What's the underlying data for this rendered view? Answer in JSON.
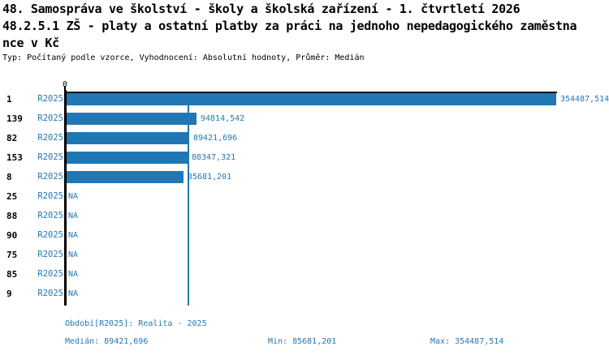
{
  "header": {
    "title_line1": "48. Samospráva ve školství - školy a školská zařízení - 1. čtvrtletí 2026",
    "title_line2": "48.2.5.1 ZŠ - platy a ostatní platby za práci na jednoho nepedagogického zaměstna",
    "title_line3": "nce v Kč",
    "meta_line": "Typ: Počítaný podle vzorce, Vyhodnocení: Absolutní hodnoty, Průměr: Medián"
  },
  "axis": {
    "zero_label": "0"
  },
  "colors": {
    "bar": "#2177b4",
    "blue_text": "#2478b4",
    "axis": "#000000"
  },
  "rows": [
    {
      "num": "1",
      "period": "R2025",
      "value": 354487.514,
      "display": "354487,514"
    },
    {
      "num": "139",
      "period": "R2025",
      "value": 94814.542,
      "display": "94814,542"
    },
    {
      "num": "82",
      "period": "R2025",
      "value": 89421.696,
      "display": "89421,696"
    },
    {
      "num": "153",
      "period": "R2025",
      "value": 88347.321,
      "display": "88347,321"
    },
    {
      "num": "8",
      "period": "R2025",
      "value": 85681.201,
      "display": "85681,201"
    },
    {
      "num": "25",
      "period": "R2025",
      "value": null,
      "display": "NA"
    },
    {
      "num": "88",
      "period": "R2025",
      "value": null,
      "display": "NA"
    },
    {
      "num": "90",
      "period": "R2025",
      "value": null,
      "display": "NA"
    },
    {
      "num": "75",
      "period": "R2025",
      "value": null,
      "display": "NA"
    },
    {
      "num": "85",
      "period": "R2025",
      "value": null,
      "display": "NA"
    },
    {
      "num": "9",
      "period": "R2025",
      "value": null,
      "display": "NA"
    }
  ],
  "footer": {
    "period_line": "Období[R2025]: Realita - 2025",
    "median": "Medián: 89421,696",
    "min": "Min: 85681,201",
    "max": "Max: 354487,514"
  },
  "chart_data": {
    "type": "bar",
    "orientation": "horizontal",
    "title": "48. Samospráva ve školství - školy a školská zařízení - 1. čtvrtletí 2026",
    "subtitle": "48.2.5.1 ZŠ - platy a ostatní platby za práci na jednoho nepedagogického zaměstnance v Kč",
    "meta": "Typ: Počítaný podle vzorce, Vyhodnocení: Absolutní hodnoty, Průměr: Medián",
    "categories": [
      "1",
      "139",
      "82",
      "153",
      "8",
      "25",
      "88",
      "90",
      "75",
      "85",
      "9"
    ],
    "series": [
      {
        "name": "R2025",
        "values": [
          354487.514,
          94814.542,
          89421.696,
          88347.321,
          85681.201,
          null,
          null,
          null,
          null,
          null,
          null
        ]
      }
    ],
    "value_labels": [
      "354487,514",
      "94814,542",
      "89421,696",
      "88347,321",
      "85681,201",
      "NA",
      "NA",
      "NA",
      "NA",
      "NA",
      "NA"
    ],
    "xlim": [
      0,
      354487.514
    ],
    "x_zero_tick": "0",
    "median": 89421.696,
    "min": 85681.201,
    "max": 354487.514,
    "median_gridline": true,
    "grid": "single vertical line at median",
    "legend_position": "none"
  }
}
